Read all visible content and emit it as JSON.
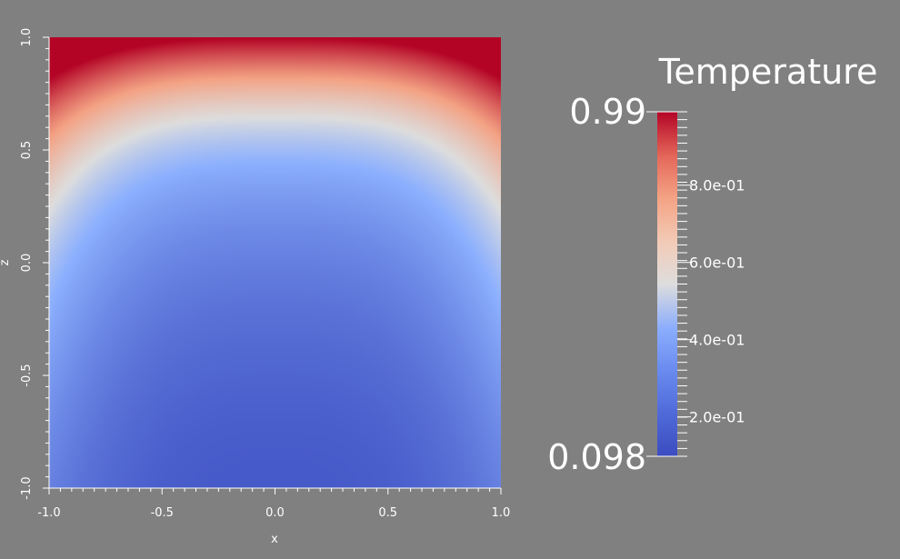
{
  "chart_data": {
    "type": "heatmap",
    "xlabel": "x",
    "ylabel": "z",
    "x_range": [
      -1.0,
      1.0
    ],
    "y_range": [
      -1.0,
      1.0
    ],
    "x_ticks": [
      "-1.0",
      "-0.5",
      "0.0",
      "0.5",
      "1.0"
    ],
    "y_ticks": [
      "-1.0",
      "-0.5",
      "0.0",
      "0.5",
      "1.0"
    ],
    "field": "Temperature",
    "colorbar": {
      "title": "Temperature",
      "min_label": "0.098",
      "max_label": "0.99",
      "min": 0.098,
      "max": 0.99,
      "colormap": "cool-to-warm",
      "ticks": [
        {
          "value": 0.2,
          "label": "2.0e-01"
        },
        {
          "value": 0.4,
          "label": "4.0e-01"
        },
        {
          "value": 0.6,
          "label": "6.0e-01"
        },
        {
          "value": 0.8,
          "label": "8.0e-01"
        }
      ]
    },
    "colors": [
      "#3b4cc0",
      "#dddddd",
      "#b40426"
    ]
  }
}
